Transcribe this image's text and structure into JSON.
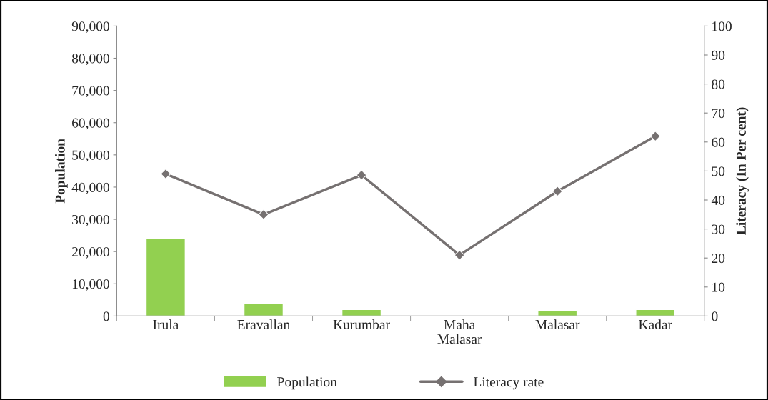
{
  "chart_data": {
    "type": "bar",
    "categories": [
      "Irula",
      "Eravallan",
      "Kurumbar",
      "Maha\nMalasar",
      "Malasar",
      "Kadar"
    ],
    "ylabel": "Population",
    "y2label": "Literacy (In Per cent)",
    "series": [
      {
        "name": "Population",
        "color": "#92d050",
        "values": [
          24000,
          3800,
          2000,
          null,
          1600,
          2000
        ]
      },
      {
        "name": "Literacy rate",
        "type": "line",
        "axis": "y2",
        "color": "#767171",
        "marker": "diamond",
        "values": [
          49,
          35,
          48.6,
          21,
          43,
          62
        ]
      }
    ],
    "ylim": [
      0,
      90000
    ],
    "yticks": [
      {
        "value": 0,
        "label": "0"
      },
      {
        "value": 10000,
        "label": "10,000"
      },
      {
        "value": 20000,
        "label": "20,000"
      },
      {
        "value": 30000,
        "label": "30,000"
      },
      {
        "value": 40000,
        "label": "40,000"
      },
      {
        "value": 50000,
        "label": "50,000"
      },
      {
        "value": 60000,
        "label": "60,000"
      },
      {
        "value": 70000,
        "label": "70,000"
      },
      {
        "value": 80000,
        "label": "80,000"
      },
      {
        "value": 90000,
        "label": "90,000"
      }
    ],
    "y2lim": [
      0,
      100
    ],
    "y2ticks": [
      0,
      10,
      20,
      30,
      40,
      50,
      60,
      70,
      80,
      90,
      100
    ],
    "grid": false,
    "legend": "bottom"
  }
}
